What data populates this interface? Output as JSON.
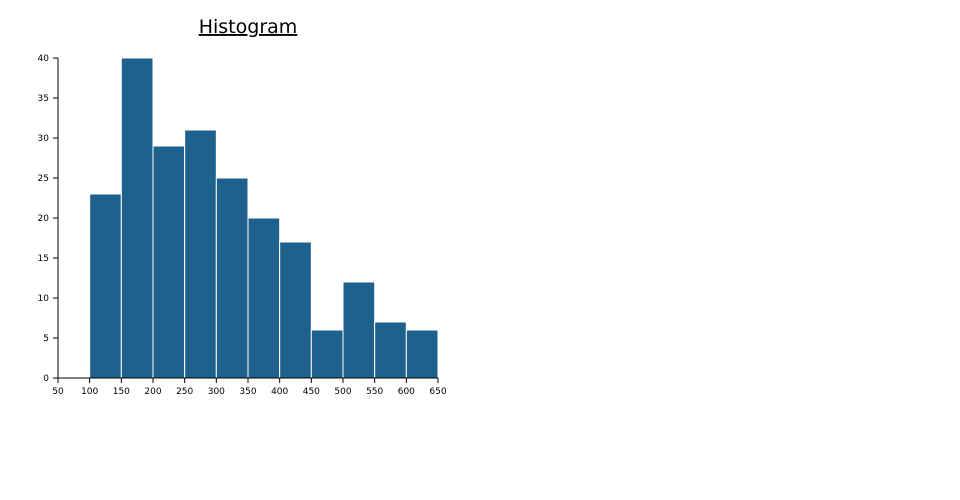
{
  "chart_data": {
    "type": "histogram",
    "title": "Histogram",
    "bins": [
      100,
      150,
      200,
      250,
      300,
      350,
      400,
      450,
      500,
      550,
      600,
      650
    ],
    "values": [
      23,
      40,
      29,
      31,
      25,
      20,
      17,
      6,
      12,
      7,
      6
    ],
    "color": "#1f618d",
    "xlim": [
      50,
      650
    ],
    "xticks": [
      50,
      100,
      150,
      200,
      250,
      300,
      350,
      400,
      450,
      500,
      550,
      600,
      650
    ],
    "ylim": [
      0,
      40
    ],
    "yticks": [
      0,
      5,
      10,
      15,
      20,
      25,
      30,
      35,
      40
    ]
  }
}
